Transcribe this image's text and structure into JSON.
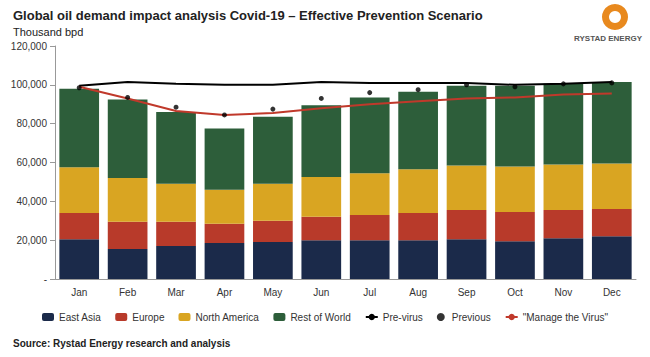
{
  "chart_data": {
    "type": "bar",
    "title": "Global oil demand impact analysis Covid-19 – Effective Prevention Scenario",
    "subtitle": "Thousand bpd",
    "source": "Source: Rystad Energy research and analysis",
    "logo_text": "RYSTAD ENERGY",
    "stacked": true,
    "grid": false,
    "legend": "bottom",
    "categories": [
      "Jan",
      "Feb",
      "Mar",
      "Apr",
      "May",
      "Jun",
      "Jul",
      "Aug",
      "Sep",
      "Oct",
      "Nov",
      "Dec"
    ],
    "ylim": [
      0,
      120000
    ],
    "yticks": [
      {
        "value": 0,
        "label": "-"
      },
      {
        "value": 20000,
        "label": "20,000"
      },
      {
        "value": 40000,
        "label": "40,000"
      },
      {
        "value": 60000,
        "label": "60,000"
      },
      {
        "value": 80000,
        "label": "80,000"
      },
      {
        "value": 100000,
        "label": "100,000"
      },
      {
        "value": 120000,
        "label": "120,000"
      }
    ],
    "series": [
      {
        "name": "East Asia",
        "type": "bar",
        "color": "#1b2a4a",
        "values": [
          20500,
          15500,
          17000,
          18500,
          19000,
          20000,
          20000,
          20000,
          20500,
          19500,
          21000,
          22000
        ]
      },
      {
        "name": "Europe",
        "type": "bar",
        "color": "#b83a2a",
        "values": [
          13500,
          14000,
          12500,
          10000,
          11000,
          12000,
          13000,
          14000,
          15000,
          15000,
          14500,
          14000
        ]
      },
      {
        "name": "North America",
        "type": "bar",
        "color": "#d9a522",
        "values": [
          23500,
          22500,
          19500,
          17500,
          19000,
          20500,
          21500,
          22500,
          23000,
          23500,
          23500,
          23500
        ]
      },
      {
        "name": "Rest of World",
        "type": "bar",
        "color": "#2d5e3a",
        "values": [
          40500,
          40500,
          37000,
          31500,
          34500,
          37000,
          39000,
          40000,
          41000,
          41500,
          41500,
          42000
        ]
      },
      {
        "name": "Pre-virus",
        "type": "line",
        "color": "#000000",
        "line_style": "solid",
        "values": [
          99500,
          101500,
          100500,
          100000,
          100000,
          101500,
          101000,
          101000,
          101000,
          100000,
          100500,
          101500
        ]
      },
      {
        "name": "Previous",
        "type": "scatter",
        "color": "#000000",
        "marker": "circle",
        "values": [
          98500,
          93500,
          88500,
          84500,
          87500,
          93000,
          96000,
          97500,
          100000,
          99000,
          100500,
          101000
        ]
      },
      {
        "name": "\"Manage the Virus\"",
        "type": "line",
        "color": "#c0392b",
        "line_style": "solid",
        "values": [
          99000,
          93000,
          86500,
          84500,
          85500,
          88000,
          90000,
          91500,
          93000,
          93500,
          95000,
          95500
        ]
      }
    ]
  }
}
